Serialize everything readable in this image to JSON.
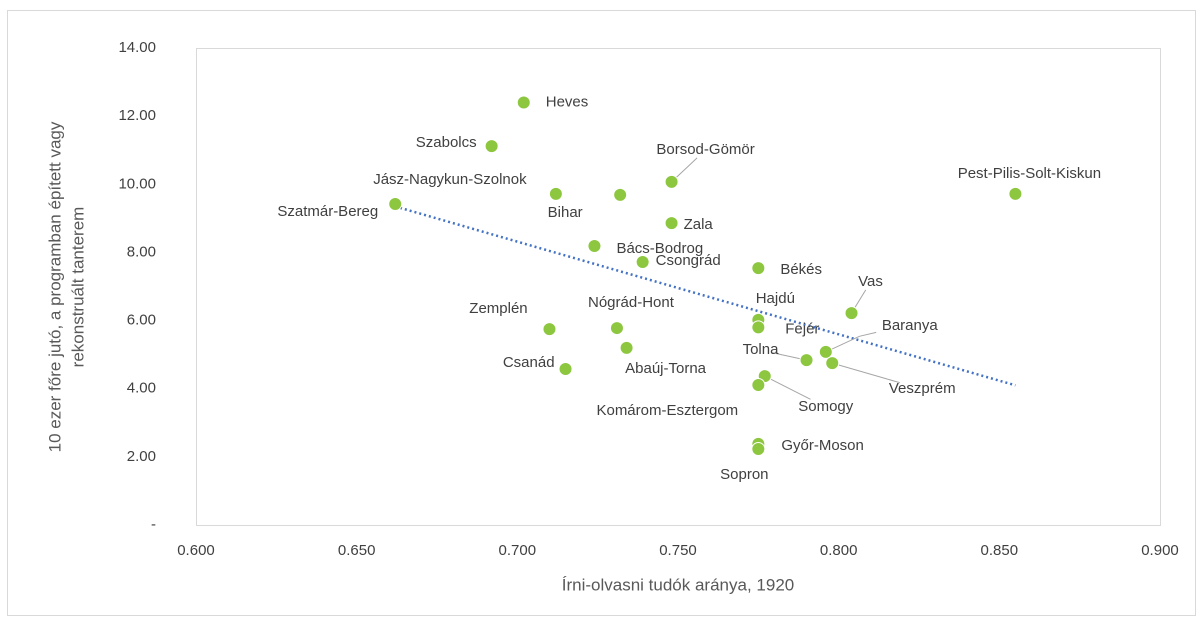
{
  "chart_data": {
    "type": "scatter",
    "x_label": "Írni-olvasni tudók aránya, 1920",
    "y_label": [
      "10 ezer főre jutó, a programban épített vagy",
      "rekonstruált tanterem"
    ],
    "color": "#8dc63f",
    "categories": [
      "Heves",
      "Szabolcs",
      "Borsod-Gömör",
      "Jász-Nagykun-Szolnok",
      "Bihar",
      "Pest-Pilis-Solt-Kiskun",
      "Szatmár-Bereg",
      "Zala",
      "Bács-Bodrog",
      "Csongrád",
      "Békés",
      "Vas",
      "Hajdú",
      "Fejér",
      "Zemplén",
      "Nógrád-Hont",
      "Abaúj-Torna",
      "Baranya",
      "Tolna",
      "Veszprém",
      "Csanád",
      "Somogy",
      "Komárom-Esztergom",
      "Győr-Moson",
      "Sopron"
    ],
    "x": [
      0.702,
      0.692,
      0.748,
      0.712,
      0.732,
      0.855,
      0.662,
      0.748,
      0.724,
      0.739,
      0.775,
      0.804,
      0.775,
      0.775,
      0.71,
      0.731,
      0.734,
      0.796,
      0.79,
      0.798,
      0.715,
      0.777,
      0.775,
      0.775,
      0.775
    ],
    "values": [
      12.4,
      11.12,
      10.07,
      9.72,
      9.69,
      9.72,
      9.42,
      8.86,
      8.19,
      7.72,
      7.54,
      6.22,
      6.02,
      5.8,
      5.75,
      5.78,
      5.2,
      5.08,
      4.84,
      4.75,
      4.58,
      4.37,
      4.11,
      2.38,
      2.23
    ],
    "trendline": {
      "color": "#4472c4",
      "x": [
        0.662,
        0.855
      ],
      "values": [
        9.35,
        4.1
      ]
    },
    "xlim": [
      0.6,
      0.9
    ],
    "xticks": [
      {
        "value": 0.6,
        "label": "0.600"
      },
      {
        "value": 0.65,
        "label": "0.650"
      },
      {
        "value": 0.7,
        "label": "0.700"
      },
      {
        "value": 0.75,
        "label": "0.750"
      },
      {
        "value": 0.8,
        "label": "0.800"
      },
      {
        "value": 0.85,
        "label": "0.850"
      },
      {
        "value": 0.9,
        "label": "0.900"
      }
    ],
    "ylim": [
      0,
      14
    ],
    "yticks": [
      {
        "value": 0,
        "label": "-"
      },
      {
        "value": 2,
        "label": "2.00"
      },
      {
        "value": 4,
        "label": "4.00"
      },
      {
        "value": 6,
        "label": "6.00"
      },
      {
        "value": 8,
        "label": "8.00"
      },
      {
        "value": 10,
        "label": "10.00"
      },
      {
        "value": 12,
        "label": "12.00"
      },
      {
        "value": 14,
        "label": "14.00"
      }
    ],
    "grid": false
  }
}
